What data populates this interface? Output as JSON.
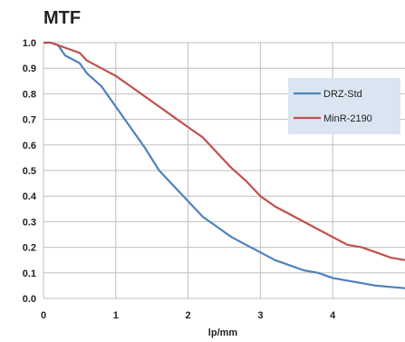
{
  "chart_data": {
    "type": "line",
    "title": "MTF",
    "xlabel": "lp/mm",
    "ylabel": "",
    "xlim": [
      0,
      5
    ],
    "ylim": [
      0,
      1.0
    ],
    "x_ticks": [
      "0",
      "1",
      "2",
      "3",
      "4"
    ],
    "y_ticks": [
      "0.0",
      "0.1",
      "0.2",
      "0.3",
      "0.4",
      "0.5",
      "0.6",
      "0.7",
      "0.8",
      "0.9",
      "1.0"
    ],
    "grid": true,
    "legend_position": "right",
    "series": [
      {
        "name": "DRZ-Std",
        "color": "#4f81bd",
        "x": [
          0,
          0.1,
          0.2,
          0.3,
          0.5,
          0.6,
          0.8,
          1.0,
          1.2,
          1.4,
          1.6,
          1.8,
          2.0,
          2.2,
          2.4,
          2.6,
          2.8,
          3.0,
          3.2,
          3.4,
          3.6,
          3.8,
          4.0,
          4.2,
          4.4,
          4.6,
          4.8,
          5.0
        ],
        "values": [
          1.0,
          1.0,
          0.99,
          0.95,
          0.92,
          0.88,
          0.83,
          0.75,
          0.67,
          0.59,
          0.5,
          0.44,
          0.38,
          0.32,
          0.28,
          0.24,
          0.21,
          0.18,
          0.15,
          0.13,
          0.11,
          0.1,
          0.08,
          0.07,
          0.06,
          0.05,
          0.045,
          0.04
        ]
      },
      {
        "name": "MinR-2190",
        "color": "#c0504d",
        "x": [
          0,
          0.1,
          0.2,
          0.3,
          0.5,
          0.6,
          0.8,
          1.0,
          1.2,
          1.4,
          1.6,
          1.8,
          2.0,
          2.2,
          2.4,
          2.6,
          2.8,
          3.0,
          3.2,
          3.4,
          3.6,
          3.8,
          4.0,
          4.2,
          4.4,
          4.6,
          4.8,
          5.0
        ],
        "values": [
          1.0,
          1.0,
          0.99,
          0.98,
          0.96,
          0.93,
          0.9,
          0.87,
          0.83,
          0.79,
          0.75,
          0.71,
          0.67,
          0.63,
          0.57,
          0.51,
          0.46,
          0.4,
          0.36,
          0.33,
          0.3,
          0.27,
          0.24,
          0.21,
          0.2,
          0.18,
          0.16,
          0.15
        ]
      }
    ]
  },
  "legend": {
    "background": "#dbe5f1"
  }
}
